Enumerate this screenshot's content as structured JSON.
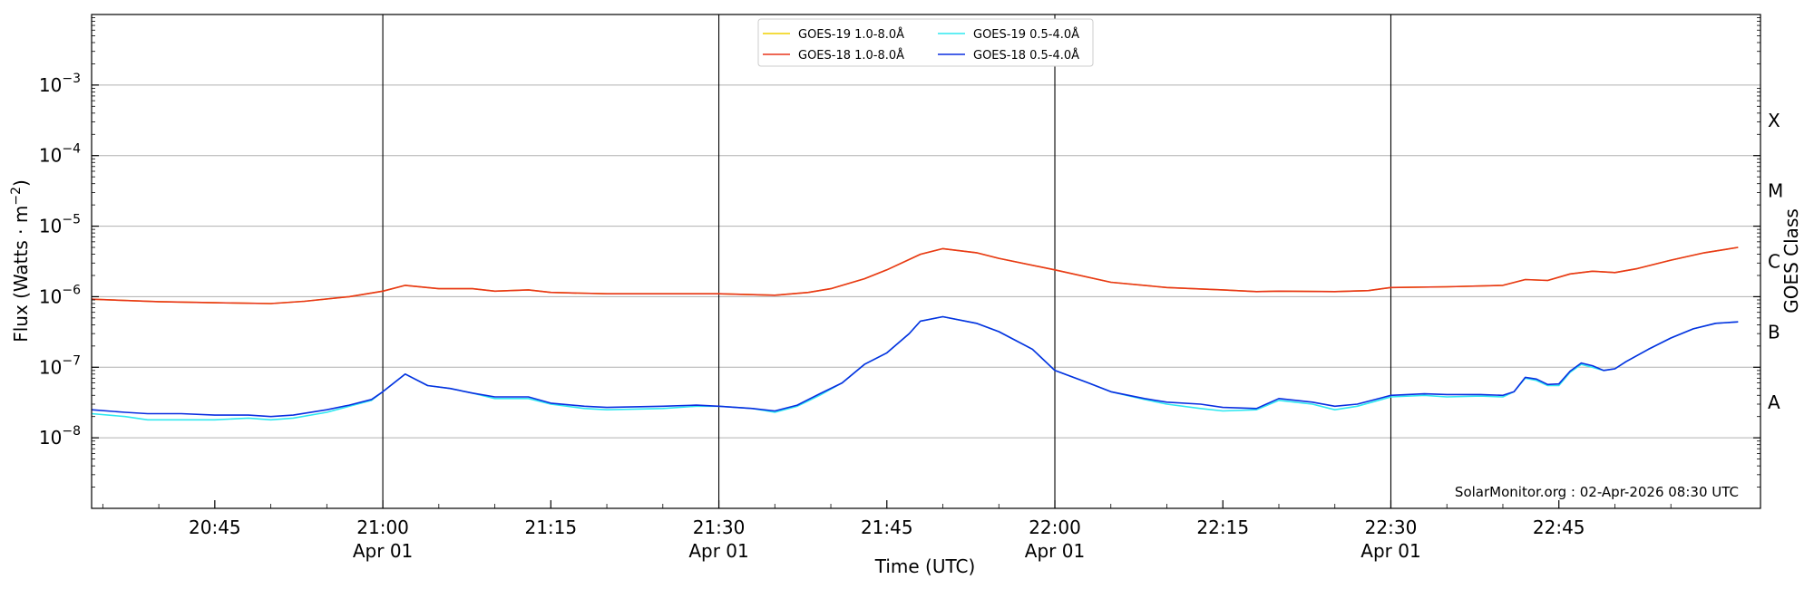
{
  "chart_data": {
    "type": "line",
    "title": "",
    "xlabel": "Time (UTC)",
    "ylabel": "Flux (Watts · m",
    "ylabel_sup": "−2",
    "ylabel_close": ")",
    "y2label": "GOES Class",
    "yscale": "log",
    "xlim": [
      "20:34",
      "23:03"
    ],
    "ylim": [
      1e-09,
      0.01
    ],
    "grid": "horizontal",
    "legend_position": "top-center",
    "credit": "SolarMonitor.org : 02-Apr-2026 08:30 UTC",
    "x_ticks": [
      {
        "time": "20:45",
        "label": "20:45",
        "sub": ""
      },
      {
        "time": "21:00",
        "label": "21:00",
        "sub": "Apr 01"
      },
      {
        "time": "21:15",
        "label": "21:15",
        "sub": ""
      },
      {
        "time": "21:30",
        "label": "21:30",
        "sub": "Apr 01"
      },
      {
        "time": "21:45",
        "label": "21:45",
        "sub": ""
      },
      {
        "time": "22:00",
        "label": "22:00",
        "sub": "Apr 01"
      },
      {
        "time": "22:15",
        "label": "22:15",
        "sub": ""
      },
      {
        "time": "22:30",
        "label": "22:30",
        "sub": "Apr 01"
      },
      {
        "time": "22:45",
        "label": "22:45",
        "sub": ""
      }
    ],
    "y_ticks": [
      {
        "value": 1e-08,
        "base": "10",
        "exp": "−8"
      },
      {
        "value": 1e-07,
        "base": "10",
        "exp": "−7"
      },
      {
        "value": 1e-06,
        "base": "10",
        "exp": "−6"
      },
      {
        "value": 1e-05,
        "base": "10",
        "exp": "−5"
      },
      {
        "value": 0.0001,
        "base": "10",
        "exp": "−4"
      },
      {
        "value": 0.001,
        "base": "10",
        "exp": "−3"
      }
    ],
    "classes": [
      {
        "label": "A",
        "value": 1e-08
      },
      {
        "label": "B",
        "value": 1e-07
      },
      {
        "label": "C",
        "value": 1e-06
      },
      {
        "label": "M",
        "value": 1e-05
      },
      {
        "label": "X",
        "value": 0.0001
      }
    ],
    "vlines": [
      "21:00",
      "21:30",
      "22:00",
      "22:30"
    ],
    "series": [
      {
        "name": "GOES-19 1.0-8.0Å",
        "color": "#f0d000",
        "x": [
          "20:34",
          "20:40",
          "20:45",
          "20:50",
          "20:53",
          "20:57",
          "21:00",
          "21:02",
          "21:05",
          "21:08",
          "21:10",
          "21:13",
          "21:15",
          "21:20",
          "21:25",
          "21:30",
          "21:35",
          "21:38",
          "21:40",
          "21:43",
          "21:45",
          "21:48",
          "21:50",
          "21:53",
          "21:55",
          "22:00",
          "22:05",
          "22:10",
          "22:15",
          "22:18",
          "22:20",
          "22:25",
          "22:28",
          "22:30",
          "22:35",
          "22:40",
          "22:42",
          "22:44",
          "22:46",
          "22:48",
          "22:50",
          "22:52",
          "22:55",
          "22:58",
          "23:01"
        ],
        "values": [
          9.2e-07,
          8.5e-07,
          8.2e-07,
          8e-07,
          8.6e-07,
          1e-06,
          1.2e-06,
          1.45e-06,
          1.3e-06,
          1.3e-06,
          1.2e-06,
          1.25e-06,
          1.15e-06,
          1.1e-06,
          1.1e-06,
          1.1e-06,
          1.05e-06,
          1.15e-06,
          1.3e-06,
          1.8e-06,
          2.4e-06,
          4e-06,
          4.8e-06,
          4.2e-06,
          3.5e-06,
          2.4e-06,
          1.6e-06,
          1.35e-06,
          1.25e-06,
          1.18e-06,
          1.2e-06,
          1.18e-06,
          1.22e-06,
          1.35e-06,
          1.38e-06,
          1.45e-06,
          1.75e-06,
          1.7e-06,
          2.1e-06,
          2.3e-06,
          2.2e-06,
          2.5e-06,
          3.3e-06,
          4.2e-06,
          5e-06
        ]
      },
      {
        "name": "GOES-18 1.0-8.0Å",
        "color": "#e8351c",
        "x": [
          "20:34",
          "20:40",
          "20:45",
          "20:50",
          "20:53",
          "20:57",
          "21:00",
          "21:02",
          "21:05",
          "21:08",
          "21:10",
          "21:13",
          "21:15",
          "21:20",
          "21:25",
          "21:30",
          "21:35",
          "21:38",
          "21:40",
          "21:43",
          "21:45",
          "21:48",
          "21:50",
          "21:53",
          "21:55",
          "22:00",
          "22:05",
          "22:10",
          "22:15",
          "22:18",
          "22:20",
          "22:25",
          "22:28",
          "22:30",
          "22:35",
          "22:40",
          "22:42",
          "22:44",
          "22:46",
          "22:48",
          "22:50",
          "22:52",
          "22:55",
          "22:58",
          "23:01"
        ],
        "values": [
          9.2e-07,
          8.5e-07,
          8.2e-07,
          8e-07,
          8.6e-07,
          1e-06,
          1.2e-06,
          1.45e-06,
          1.3e-06,
          1.3e-06,
          1.2e-06,
          1.25e-06,
          1.15e-06,
          1.1e-06,
          1.1e-06,
          1.1e-06,
          1.05e-06,
          1.15e-06,
          1.3e-06,
          1.8e-06,
          2.4e-06,
          4e-06,
          4.8e-06,
          4.2e-06,
          3.5e-06,
          2.4e-06,
          1.6e-06,
          1.35e-06,
          1.25e-06,
          1.18e-06,
          1.2e-06,
          1.18e-06,
          1.22e-06,
          1.35e-06,
          1.38e-06,
          1.45e-06,
          1.75e-06,
          1.7e-06,
          2.1e-06,
          2.3e-06,
          2.2e-06,
          2.5e-06,
          3.3e-06,
          4.2e-06,
          5e-06
        ]
      },
      {
        "name": "GOES-19 0.5-4.0Å",
        "color": "#2ee8f0",
        "x": [
          "20:34",
          "20:37",
          "20:39",
          "20:42",
          "20:45",
          "20:48",
          "20:50",
          "20:52",
          "20:55",
          "20:57",
          "20:59",
          "21:00",
          "21:02",
          "21:04",
          "21:06",
          "21:08",
          "21:10",
          "21:13",
          "21:15",
          "21:18",
          "21:20",
          "21:25",
          "21:28",
          "21:30",
          "21:33",
          "21:35",
          "21:37",
          "21:39",
          "21:41",
          "21:43",
          "21:45",
          "21:47",
          "21:48",
          "21:50",
          "21:53",
          "21:55",
          "21:58",
          "22:00",
          "22:03",
          "22:05",
          "22:08",
          "22:10",
          "22:13",
          "22:15",
          "22:18",
          "22:20",
          "22:23",
          "22:25",
          "22:27",
          "22:30",
          "22:33",
          "22:35",
          "22:38",
          "22:40",
          "22:41",
          "22:42",
          "22:43",
          "22:44",
          "22:45",
          "22:46",
          "22:47",
          "22:48",
          "22:49",
          "22:50",
          "22:51",
          "22:53",
          "22:55",
          "22:57",
          "22:59",
          "23:01"
        ],
        "values": [
          2.2e-08,
          2e-08,
          1.8e-08,
          1.8e-08,
          1.8e-08,
          1.9e-08,
          1.8e-08,
          1.9e-08,
          2.3e-08,
          2.8e-08,
          3.4e-08,
          4.5e-08,
          8e-08,
          5.5e-08,
          5e-08,
          4.3e-08,
          3.6e-08,
          3.6e-08,
          3e-08,
          2.6e-08,
          2.5e-08,
          2.6e-08,
          2.8e-08,
          2.8e-08,
          2.6e-08,
          2.3e-08,
          2.8e-08,
          4e-08,
          6e-08,
          1.1e-07,
          1.6e-07,
          3e-07,
          4.5e-07,
          5.2e-07,
          4.2e-07,
          3.2e-07,
          1.8e-07,
          9e-08,
          6e-08,
          4.5e-08,
          3.5e-08,
          3e-08,
          2.6e-08,
          2.4e-08,
          2.5e-08,
          3.4e-08,
          3e-08,
          2.5e-08,
          2.8e-08,
          3.8e-08,
          4e-08,
          3.8e-08,
          3.9e-08,
          3.8e-08,
          4.5e-08,
          7e-08,
          6.5e-08,
          5.5e-08,
          5.5e-08,
          8.5e-08,
          1.1e-07,
          1e-07,
          9e-08,
          9.5e-08,
          1.2e-07,
          1.8e-07,
          2.6e-07,
          3.5e-07,
          4.2e-07,
          4.4e-07
        ]
      },
      {
        "name": "GOES-18 0.5-4.0Å",
        "color": "#0a2ee0",
        "x": [
          "20:34",
          "20:37",
          "20:39",
          "20:42",
          "20:45",
          "20:48",
          "20:50",
          "20:52",
          "20:55",
          "20:57",
          "20:59",
          "21:00",
          "21:02",
          "21:04",
          "21:06",
          "21:08",
          "21:10",
          "21:13",
          "21:15",
          "21:18",
          "21:20",
          "21:25",
          "21:28",
          "21:30",
          "21:33",
          "21:35",
          "21:37",
          "21:39",
          "21:41",
          "21:43",
          "21:45",
          "21:47",
          "21:48",
          "21:50",
          "21:53",
          "21:55",
          "21:58",
          "22:00",
          "22:03",
          "22:05",
          "22:08",
          "22:10",
          "22:13",
          "22:15",
          "22:18",
          "22:20",
          "22:23",
          "22:25",
          "22:27",
          "22:30",
          "22:33",
          "22:35",
          "22:38",
          "22:40",
          "22:41",
          "22:42",
          "22:43",
          "22:44",
          "22:45",
          "22:46",
          "22:47",
          "22:48",
          "22:49",
          "22:50",
          "22:51",
          "22:53",
          "22:55",
          "22:57",
          "22:59",
          "23:01"
        ],
        "values": [
          2.5e-08,
          2.3e-08,
          2.2e-08,
          2.2e-08,
          2.1e-08,
          2.1e-08,
          2e-08,
          2.1e-08,
          2.5e-08,
          2.9e-08,
          3.5e-08,
          4.5e-08,
          8e-08,
          5.5e-08,
          5e-08,
          4.3e-08,
          3.8e-08,
          3.8e-08,
          3.1e-08,
          2.8e-08,
          2.7e-08,
          2.8e-08,
          2.9e-08,
          2.8e-08,
          2.6e-08,
          2.4e-08,
          2.9e-08,
          4.2e-08,
          6e-08,
          1.1e-07,
          1.6e-07,
          3e-07,
          4.5e-07,
          5.2e-07,
          4.2e-07,
          3.2e-07,
          1.8e-07,
          9e-08,
          6e-08,
          4.5e-08,
          3.6e-08,
          3.2e-08,
          3e-08,
          2.7e-08,
          2.6e-08,
          3.6e-08,
          3.2e-08,
          2.8e-08,
          3e-08,
          4e-08,
          4.2e-08,
          4.1e-08,
          4.1e-08,
          4e-08,
          4.5e-08,
          7.2e-08,
          6.8e-08,
          5.7e-08,
          5.8e-08,
          8.8e-08,
          1.15e-07,
          1.05e-07,
          9e-08,
          9.5e-08,
          1.2e-07,
          1.8e-07,
          2.6e-07,
          3.5e-07,
          4.2e-07,
          4.4e-07
        ]
      }
    ]
  }
}
